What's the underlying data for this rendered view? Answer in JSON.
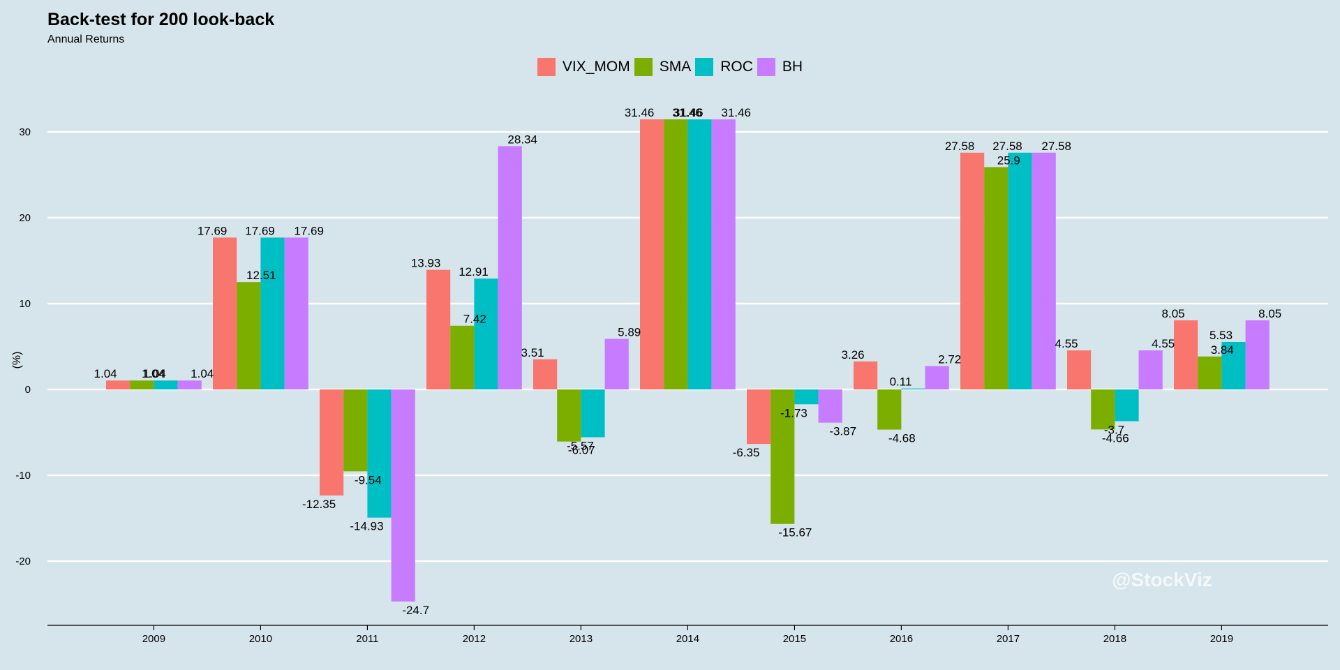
{
  "title": "Back-test for 200 look-back",
  "subtitle": "Annual Returns",
  "watermark": "@StockViz",
  "chart_data": {
    "type": "bar",
    "title": "Back-test for 200 look-back",
    "subtitle": "Annual Returns",
    "xlabel": "",
    "ylabel": "(%)",
    "ylim": [
      -27.5,
      33
    ],
    "yticks": [
      -20,
      -10,
      0,
      10,
      20,
      30
    ],
    "categories": [
      "2009",
      "2010",
      "2011",
      "2012",
      "2013",
      "2014",
      "2015",
      "2016",
      "2017",
      "2018",
      "2019"
    ],
    "legend_position": "top",
    "grid": "horizontal",
    "series": [
      {
        "name": "VIX_MOM",
        "color": "#f8766d",
        "values": [
          1.04,
          17.69,
          -12.35,
          13.93,
          3.51,
          31.46,
          -6.35,
          3.26,
          27.58,
          4.55,
          8.05
        ]
      },
      {
        "name": "SMA",
        "color": "#7cae00",
        "values": [
          1.04,
          12.51,
          -9.54,
          7.42,
          -6.07,
          31.46,
          -15.67,
          -4.68,
          25.9,
          -4.66,
          3.84
        ]
      },
      {
        "name": "ROC",
        "color": "#00bfc4",
        "values": [
          1.04,
          17.69,
          -14.93,
          12.91,
          -5.57,
          31.46,
          -1.73,
          0.11,
          27.58,
          -3.7,
          5.53
        ]
      },
      {
        "name": "BH",
        "color": "#c77cff",
        "values": [
          1.04,
          17.69,
          -24.7,
          28.34,
          5.89,
          31.46,
          -3.87,
          2.72,
          27.58,
          4.55,
          8.05
        ]
      }
    ]
  }
}
